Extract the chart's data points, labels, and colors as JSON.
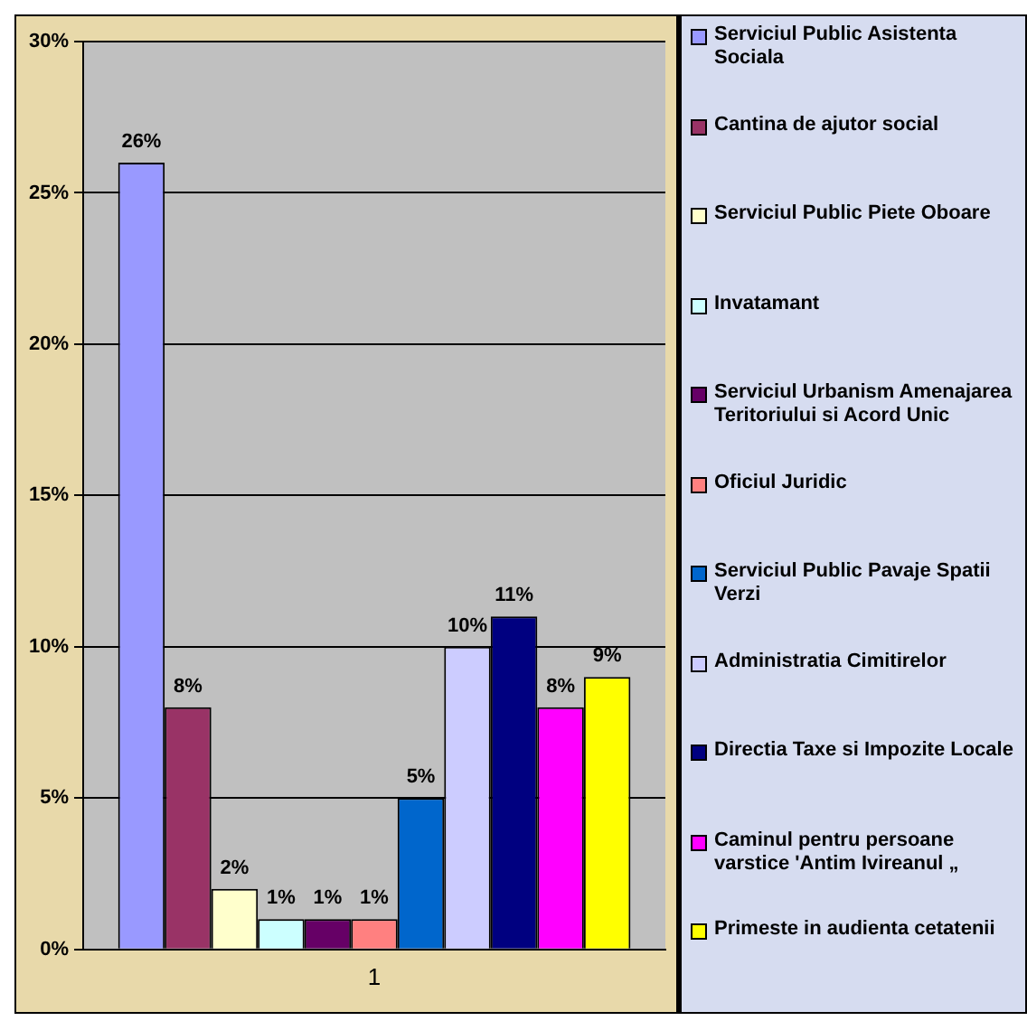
{
  "chart_data": {
    "type": "bar",
    "categories": [
      "1"
    ],
    "series": [
      {
        "name": "Serviciul Public Asistenta Sociala",
        "color": "#9999ff",
        "values": [
          26
        ],
        "value_labels": [
          "26%"
        ]
      },
      {
        "name": "Cantina de ajutor social",
        "color": "#993366",
        "values": [
          8
        ],
        "value_labels": [
          "8%"
        ]
      },
      {
        "name": "Serviciul Public Piete Oboare",
        "color": "#ffffcc",
        "values": [
          2
        ],
        "value_labels": [
          "2%"
        ]
      },
      {
        "name": "Invatamant",
        "color": "#ccffff",
        "values": [
          1
        ],
        "value_labels": [
          "1%"
        ]
      },
      {
        "name": "Serviciul Urbanism Amenajarea Teritoriului si Acord Unic",
        "color": "#660066",
        "values": [
          1
        ],
        "value_labels": [
          "1%"
        ]
      },
      {
        "name": "Oficiul Juridic",
        "color": "#ff8080",
        "values": [
          1
        ],
        "value_labels": [
          "1%"
        ]
      },
      {
        "name": "Serviciul Public Pavaje Spatii Verzi",
        "color": "#0066cc",
        "values": [
          5
        ],
        "value_labels": [
          "5%"
        ]
      },
      {
        "name": "Administratia Cimitirelor",
        "color": "#ccccff",
        "values": [
          10
        ],
        "value_labels": [
          "10%"
        ]
      },
      {
        "name": "Directia Taxe si Impozite Locale",
        "color": "#000080",
        "values": [
          11
        ],
        "value_labels": [
          "11%"
        ]
      },
      {
        "name": "Caminul pentru persoane varstice  'Antim Ivireanul „",
        "color": "#ff00ff",
        "values": [
          8
        ],
        "value_labels": [
          "8%"
        ]
      },
      {
        "name": "Primeste in audienta cetatenii",
        "color": "#ffff00",
        "values": [
          9
        ],
        "value_labels": [
          "9%"
        ]
      }
    ],
    "ylim": [
      0,
      30
    ],
    "yticks": [
      {
        "value": 0,
        "label": "0%"
      },
      {
        "value": 5,
        "label": "5%"
      },
      {
        "value": 10,
        "label": "10%"
      },
      {
        "value": 15,
        "label": "15%"
      },
      {
        "value": 20,
        "label": "20%"
      },
      {
        "value": 25,
        "label": "25%"
      },
      {
        "value": 30,
        "label": "30%"
      }
    ],
    "grid": "y",
    "legend": "right"
  }
}
